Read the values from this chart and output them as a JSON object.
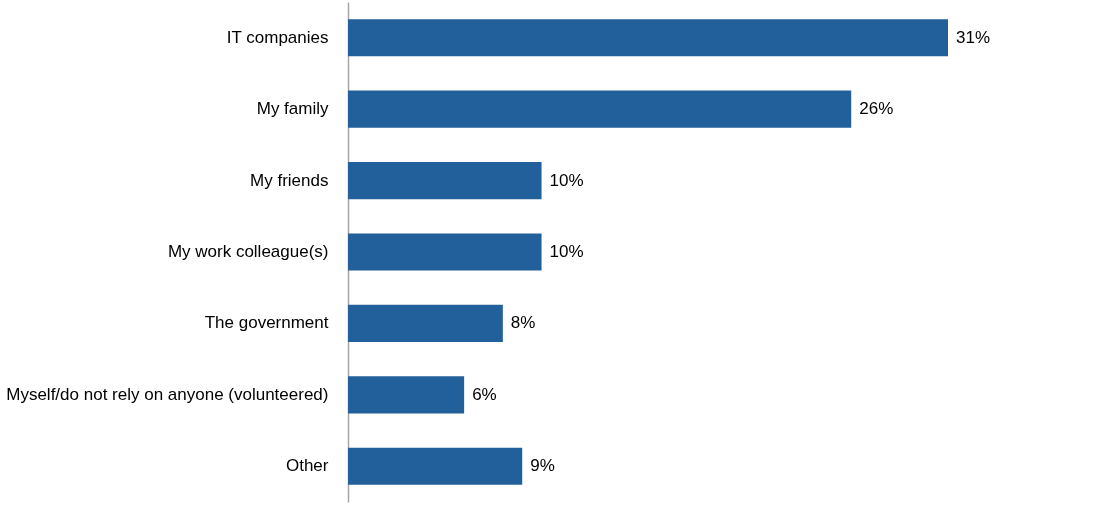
{
  "chart_data": {
    "type": "bar",
    "orientation": "horizontal",
    "categories": [
      "IT companies",
      "My family",
      "My friends",
      "My work colleague(s)",
      "The government",
      "Myself/do not rely on anyone (volunteered)",
      "Other"
    ],
    "values": [
      31,
      26,
      10,
      10,
      8,
      6,
      9
    ],
    "value_labels": [
      "31%",
      "26%",
      "10%",
      "10%",
      "8%",
      "6%",
      "9%"
    ],
    "color": "#22609c",
    "grid": false
  }
}
